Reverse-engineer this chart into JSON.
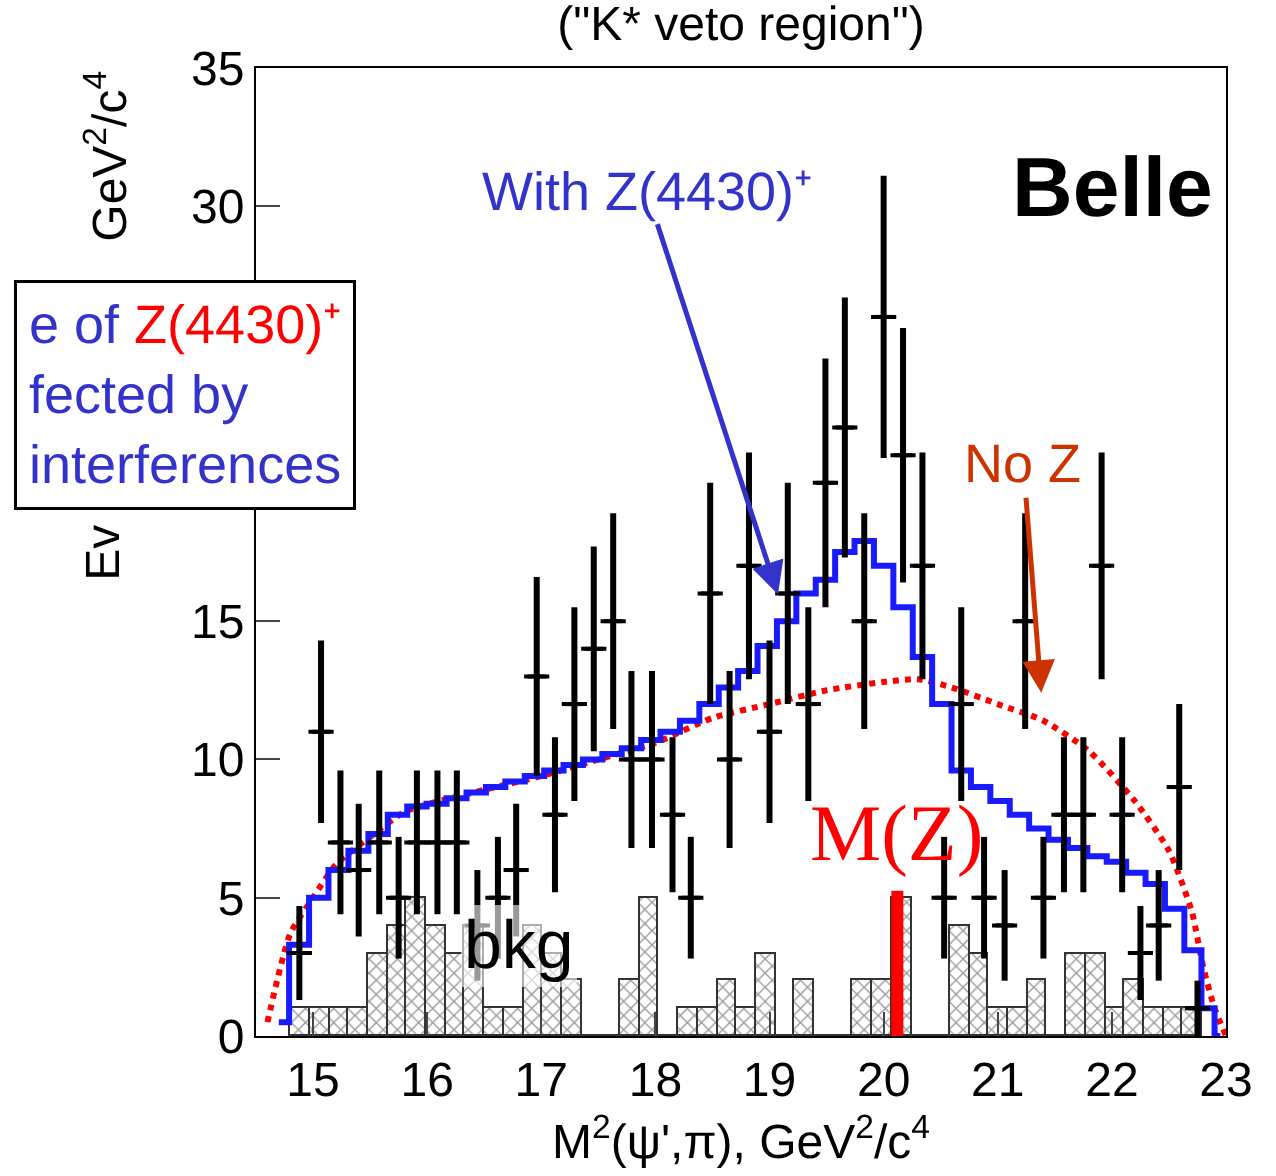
{
  "chart_data": {
    "type": "scatter",
    "title": "(\"K* veto region\")",
    "xlabel": "M$^{2}$(ψ',π), GeV$^{2}$/c$^{4}$",
    "xlim": [
      14.5,
      23.0
    ],
    "xticks": [
      15,
      16,
      17,
      18,
      19,
      20,
      21,
      22,
      23
    ],
    "ylim": [
      0,
      35
    ],
    "yticks": [
      0,
      5,
      10,
      15,
      30,
      35
    ],
    "annotations": [
      "e of ",
      "Z(4430)⁺",
      "fected by",
      "interferences",
      "Belle",
      "Ev",
      "GeV$^{2}$/c$^{4}$"
    ],
    "ref_lines": [
      {
        "axis": "x",
        "value": 20.12,
        "label": "M(Z)",
        "color": "#ff0000"
      }
    ],
    "series": [
      {
        "type": "bar",
        "name": "bkg",
        "color": "#333333",
        "x": [
          14.885,
          15.055,
          15.225,
          15.395,
          15.565,
          15.735,
          15.905,
          16.075,
          16.245,
          16.415,
          16.585,
          16.755,
          16.925,
          17.095,
          17.265,
          17.435,
          17.605,
          17.775,
          17.945,
          18.115,
          18.285,
          18.455,
          18.625,
          18.795,
          18.965,
          19.135,
          19.305,
          19.475,
          19.645,
          19.815,
          19.985,
          20.155,
          20.325,
          20.495,
          20.665,
          20.835,
          21.005,
          21.175,
          21.345,
          21.515,
          21.685,
          21.855,
          22.025,
          22.195,
          22.365,
          22.535,
          22.705
        ],
        "values": [
          1,
          1,
          1,
          1,
          3,
          4,
          5,
          4,
          3,
          4,
          1,
          1,
          4,
          3,
          2,
          0,
          0,
          2,
          5,
          0,
          1,
          1,
          2,
          1,
          3,
          0,
          2,
          0,
          0,
          2,
          2,
          5,
          0,
          0,
          4,
          3,
          1,
          1,
          2,
          0,
          3,
          3,
          1,
          2,
          1,
          1,
          1
        ]
      },
      {
        "type": "line",
        "name": "No Z",
        "color": "#ff0000",
        "line_style": "dotted",
        "x": [
          14.6,
          14.8,
          15.0,
          15.2,
          15.5,
          15.8,
          16.2,
          16.6,
          17.0,
          17.5,
          18.0,
          18.5,
          19.0,
          19.5,
          20.0,
          20.3,
          20.6,
          21.0,
          21.4,
          21.8,
          22.2,
          22.5,
          22.7,
          22.8,
          22.9,
          23.0
        ],
        "values": [
          0.5,
          3.7,
          5.0,
          6.2,
          7.2,
          8.1,
          8.6,
          9.0,
          9.4,
          10.0,
          10.6,
          11.5,
          12.0,
          12.5,
          12.8,
          12.9,
          12.6,
          12.0,
          11.4,
          10.3,
          8.5,
          6.7,
          4.5,
          2.5,
          1.0,
          0.0
        ]
      },
      {
        "type": "step",
        "name": "With Z(4430)⁺",
        "color": "#1a1aff",
        "x": [
          14.7,
          14.88,
          15.05,
          15.22,
          15.4,
          15.57,
          15.74,
          15.91,
          16.08,
          16.26,
          16.43,
          16.6,
          16.77,
          16.94,
          17.11,
          17.28,
          17.45,
          17.62,
          17.79,
          17.96,
          18.13,
          18.3,
          18.47,
          18.64,
          18.81,
          18.98,
          19.15,
          19.32,
          19.49,
          19.66,
          19.83,
          20.0,
          20.17,
          20.34,
          20.51,
          20.68,
          20.85,
          21.02,
          21.19,
          21.36,
          21.53,
          21.7,
          21.87,
          22.04,
          22.21,
          22.38,
          22.55,
          22.72,
          22.85,
          22.95
        ],
        "values": [
          0.5,
          3.3,
          5.0,
          6.0,
          6.7,
          7.3,
          8.0,
          8.3,
          8.4,
          8.6,
          8.8,
          9.0,
          9.2,
          9.4,
          9.6,
          9.8,
          10.0,
          10.2,
          10.4,
          10.7,
          11.0,
          11.4,
          12.0,
          12.6,
          13.2,
          14.1,
          15.0,
          16.0,
          16.5,
          17.5,
          17.9,
          17.0,
          15.5,
          13.7,
          12.0,
          9.6,
          9.0,
          8.5,
          8.0,
          7.5,
          7.1,
          6.8,
          6.5,
          6.3,
          5.9,
          5.5,
          4.6,
          3.1,
          1.0,
          0.0
        ]
      },
      {
        "color": "#000000",
        "marker": "cross",
        "x": [
          14.88,
          15.07,
          15.24,
          15.4,
          15.58,
          15.75,
          15.91,
          16.09,
          16.26,
          16.44,
          16.62,
          16.78,
          16.96,
          17.12,
          17.29,
          17.46,
          17.63,
          17.79,
          17.97,
          18.15,
          18.31,
          18.48,
          18.65,
          18.82,
          19.0,
          19.16,
          19.34,
          19.49,
          19.66,
          19.83,
          20.0,
          20.17,
          20.34,
          20.53,
          20.68,
          20.88,
          21.06,
          21.24,
          21.4,
          21.58,
          21.75,
          21.91,
          22.09,
          22.25,
          22.41,
          22.59,
          22.75
        ],
        "values": [
          3,
          11,
          7,
          6,
          7,
          5,
          7,
          7,
          7,
          4,
          5,
          6,
          13,
          8,
          12,
          14,
          15,
          10,
          10,
          8,
          5,
          16,
          10,
          17,
          11,
          16,
          12,
          20,
          22,
          15,
          26,
          21,
          17,
          5,
          12,
          5,
          4,
          15,
          5,
          8,
          8,
          17,
          8,
          3,
          4,
          9,
          1
        ],
        "errors": [
          1.7,
          3.3,
          2.6,
          2.4,
          2.6,
          2.2,
          2.6,
          2.6,
          2.6,
          2.0,
          2.2,
          2.4,
          3.6,
          2.8,
          3.5,
          3.7,
          3.9,
          3.2,
          3.2,
          2.8,
          2.2,
          4.0,
          3.2,
          4.1,
          3.3,
          4.0,
          3.5,
          4.5,
          4.7,
          3.9,
          5.1,
          4.6,
          4.1,
          2.2,
          3.5,
          2.2,
          2.0,
          3.9,
          2.2,
          2.8,
          2.8,
          4.1,
          2.8,
          1.7,
          2.0,
          3.0,
          1.0
        ],
        "xerrors": [
          0.08,
          0.08,
          0.08,
          0.08,
          0.08,
          0.08,
          0.08,
          0.08,
          0.08,
          0.08,
          0.08,
          0.08,
          0.08,
          0.08,
          0.08,
          0.08,
          0.08,
          0.08,
          0.08,
          0.08,
          0.08,
          0.08,
          0.08,
          0.08,
          0.08,
          0.08,
          0.08,
          0.08,
          0.08,
          0.08,
          0.08,
          0.08,
          0.08,
          0.08,
          0.08,
          0.08,
          0.08,
          0.08,
          0.08,
          0.08,
          0.08,
          0.08,
          0.08,
          0.08,
          0.08,
          0.08,
          0.08
        ]
      }
    ]
  }
}
